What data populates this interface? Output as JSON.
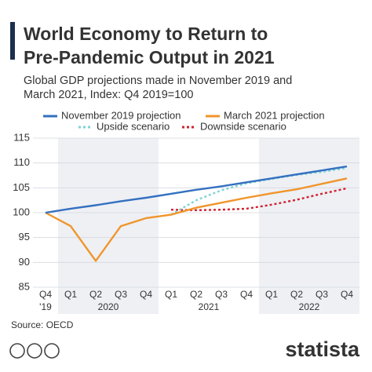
{
  "chart_data": {
    "type": "line",
    "title": [
      "World Economy to Return to",
      "Pre-Pandemic Output in 2021"
    ],
    "subtitle": [
      "Global GDP projections made in November 2019 and",
      "March 2021, Index: Q4 2019=100"
    ],
    "groups": [
      {
        "label": "'19",
        "quarters": [
          "Q4"
        ]
      },
      {
        "label": "2020",
        "quarters": [
          "Q1",
          "Q2",
          "Q3",
          "Q4"
        ],
        "shaded": true
      },
      {
        "label": "2021",
        "quarters": [
          "Q1",
          "Q2",
          "Q3",
          "Q4"
        ]
      },
      {
        "label": "2022",
        "quarters": [
          "Q1",
          "Q2",
          "Q3",
          "Q4"
        ],
        "shaded": true
      }
    ],
    "series": [
      {
        "name": "November 2019 projection",
        "color": "#3470c0",
        "style": "solid",
        "values": [
          100,
          100.8,
          101.5,
          102.3,
          103.0,
          103.8,
          104.6,
          105.3,
          106.1,
          106.9,
          107.7,
          108.5,
          109.3
        ]
      },
      {
        "name": "March 2021 projection",
        "color": "#f0952b",
        "style": "solid",
        "values": [
          100,
          97.3,
          90.3,
          97.3,
          98.9,
          99.6,
          101.0,
          102.0,
          103.0,
          103.9,
          104.7,
          105.8,
          106.9
        ]
      },
      {
        "name": "Upside scenario",
        "color": "#7fd3d6",
        "style": "dotted",
        "values": [
          null,
          null,
          null,
          null,
          null,
          99.6,
          102.5,
          104.5,
          105.9,
          106.8,
          107.6,
          108.2,
          109.0
        ]
      },
      {
        "name": "Downside scenario",
        "color": "#d3202f",
        "style": "dotted",
        "values": [
          null,
          null,
          null,
          null,
          null,
          100.6,
          100.5,
          100.6,
          100.8,
          101.6,
          102.6,
          103.8,
          104.9
        ]
      }
    ],
    "ylim": [
      85,
      115
    ],
    "yticks": [
      85,
      90,
      95,
      100,
      105,
      110,
      115
    ],
    "grid": true,
    "source": "Source: OECD",
    "brand": "statista"
  }
}
